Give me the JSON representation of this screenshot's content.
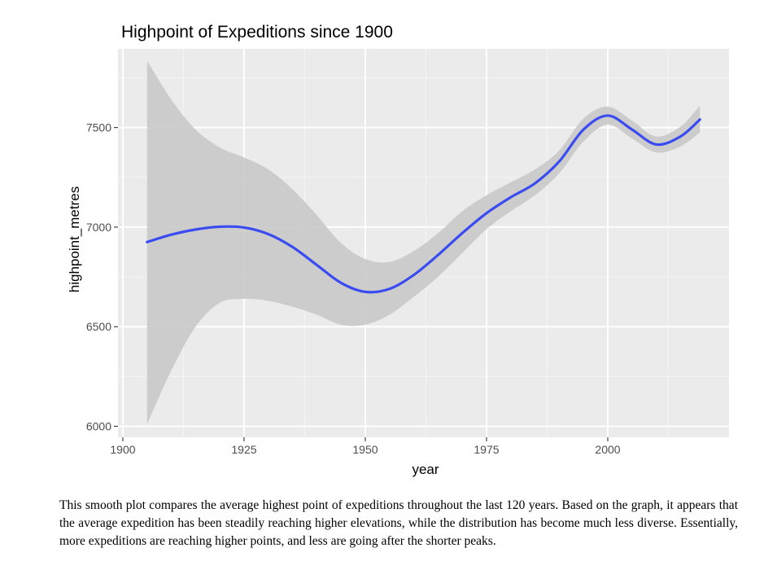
{
  "chart_data": {
    "type": "line",
    "title": "Highpoint of Expeditions since 1900",
    "xlabel": "year",
    "ylabel": "highpoint_metres",
    "xlim": [
      1899,
      2025
    ],
    "ylim": [
      5945,
      7895
    ],
    "x_ticks": [
      1900,
      1925,
      1950,
      1975,
      2000
    ],
    "y_ticks": [
      6000,
      6500,
      7000,
      7500
    ],
    "grid": true,
    "series": [
      {
        "color": "#3a4cf0",
        "ribbon_color": "#c9c9c9",
        "points": [
          {
            "x": 1905,
            "y": 6925,
            "lower": 6010,
            "upper": 7835
          },
          {
            "x": 1910,
            "y": 6962,
            "lower": 6280,
            "upper": 7640
          },
          {
            "x": 1915,
            "y": 6988,
            "lower": 6500,
            "upper": 7490
          },
          {
            "x": 1920,
            "y": 7002,
            "lower": 6620,
            "upper": 7400
          },
          {
            "x": 1925,
            "y": 6998,
            "lower": 6640,
            "upper": 7350
          },
          {
            "x": 1930,
            "y": 6965,
            "lower": 6630,
            "upper": 7290
          },
          {
            "x": 1935,
            "y": 6900,
            "lower": 6600,
            "upper": 7190
          },
          {
            "x": 1940,
            "y": 6810,
            "lower": 6560,
            "upper": 7060
          },
          {
            "x": 1945,
            "y": 6720,
            "lower": 6510,
            "upper": 6920
          },
          {
            "x": 1950,
            "y": 6675,
            "lower": 6510,
            "upper": 6840
          },
          {
            "x": 1955,
            "y": 6690,
            "lower": 6560,
            "upper": 6825
          },
          {
            "x": 1960,
            "y": 6760,
            "lower": 6650,
            "upper": 6880
          },
          {
            "x": 1965,
            "y": 6860,
            "lower": 6750,
            "upper": 6970
          },
          {
            "x": 1970,
            "y": 6970,
            "lower": 6870,
            "upper": 7080
          },
          {
            "x": 1975,
            "y": 7070,
            "lower": 6990,
            "upper": 7160
          },
          {
            "x": 1980,
            "y": 7150,
            "lower": 7080,
            "upper": 7225
          },
          {
            "x": 1985,
            "y": 7220,
            "lower": 7160,
            "upper": 7290
          },
          {
            "x": 1990,
            "y": 7330,
            "lower": 7270,
            "upper": 7385
          },
          {
            "x": 1995,
            "y": 7490,
            "lower": 7430,
            "upper": 7545
          },
          {
            "x": 2000,
            "y": 7560,
            "lower": 7515,
            "upper": 7605
          },
          {
            "x": 2005,
            "y": 7490,
            "lower": 7445,
            "upper": 7535
          },
          {
            "x": 2010,
            "y": 7415,
            "lower": 7375,
            "upper": 7455
          },
          {
            "x": 2015,
            "y": 7455,
            "lower": 7405,
            "upper": 7505
          },
          {
            "x": 2019,
            "y": 7540,
            "lower": 7475,
            "upper": 7610
          }
        ]
      }
    ]
  },
  "caption": "This smooth plot compares the average highest point of expeditions throughout the last 120 years.  Based on the graph, it appears that the average expedition has been steadily reaching higher elevations, while the distribution has become much less diverse. Essentially, more expeditions are reaching higher points, and less are going after the shorter peaks."
}
